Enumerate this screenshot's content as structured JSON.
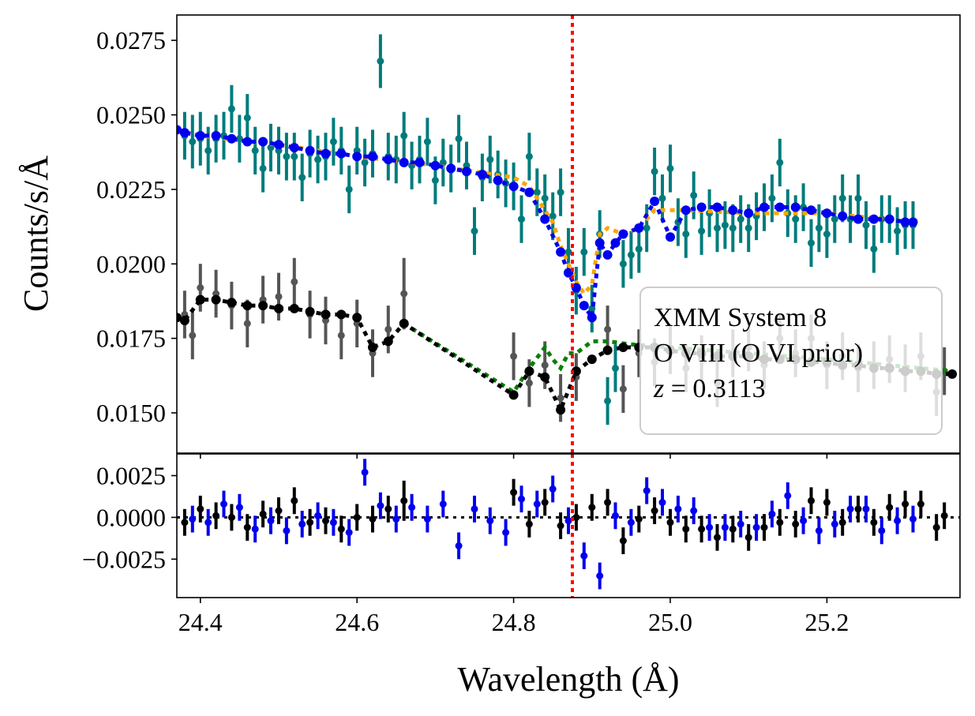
{
  "chart_data": {
    "type": "scatter",
    "xlabel": "Wavelength (Å)",
    "ylabel": "Counts/s/Å",
    "xlim": [
      24.37,
      25.37
    ],
    "top_ylim": [
      0.01365,
      0.02835
    ],
    "bottom_ylim": [
      -0.0048,
      0.0038
    ],
    "x_ticks": [
      24.4,
      24.6,
      24.8,
      25.0,
      25.2
    ],
    "x_tick_labels": [
      "24.4",
      "24.6",
      "24.8",
      "25.0",
      "25.2"
    ],
    "top_y_ticks": [
      0.015,
      0.0175,
      0.02,
      0.0225,
      0.025,
      0.0275
    ],
    "top_y_tick_labels": [
      "0.0150",
      "0.0175",
      "0.0200",
      "0.0225",
      "0.0250",
      "0.0275"
    ],
    "bottom_y_ticks": [
      -0.0025,
      0.0,
      0.0025
    ],
    "bottom_y_tick_labels": [
      "−0.0025",
      "0.0000",
      "0.0025"
    ],
    "line_wavelength": 24.875,
    "legend": {
      "lines": [
        "XMM System 8",
        "O VIII (O VI prior)"
      ],
      "z_symbol": "z",
      "z_value": " = 0.3113",
      "position": "right"
    },
    "colors": {
      "data_upper": "#007b7b",
      "model_upper": "#0000ee",
      "model_upper_alt": "#ffa500",
      "data_lower": "#555555",
      "model_lower": "#000000",
      "model_lower_alt": "#008000",
      "line_marker": "#ff0000"
    },
    "upper_data": {
      "x": [
        24.38,
        24.39,
        24.4,
        24.41,
        24.42,
        24.43,
        24.44,
        24.45,
        24.46,
        24.47,
        24.48,
        24.49,
        24.5,
        24.51,
        24.52,
        24.53,
        24.54,
        24.55,
        24.56,
        24.57,
        24.58,
        24.59,
        24.6,
        24.61,
        24.62,
        24.63,
        24.64,
        24.65,
        24.66,
        24.67,
        24.68,
        24.69,
        24.7,
        24.71,
        24.72,
        24.73,
        24.74,
        24.75,
        24.76,
        24.77,
        24.78,
        24.79,
        24.8,
        24.81,
        24.82,
        24.83,
        24.84,
        24.85,
        24.86,
        24.87,
        24.88,
        24.89,
        24.9,
        24.91,
        24.92,
        24.93,
        24.94,
        24.95,
        24.96,
        24.97,
        24.98,
        24.99,
        25.0,
        25.01,
        25.02,
        25.03,
        25.04,
        25.05,
        25.06,
        25.07,
        25.08,
        25.09,
        25.1,
        25.11,
        25.12,
        25.13,
        25.14,
        25.15,
        25.16,
        25.17,
        25.18,
        25.19,
        25.2,
        25.21,
        25.22,
        25.23,
        25.24,
        25.25,
        25.26,
        25.27,
        25.28,
        25.29,
        25.3,
        25.31
      ],
      "y": [
        0.0243,
        0.0241,
        0.0242,
        0.0238,
        0.0242,
        0.0243,
        0.0252,
        0.0242,
        0.0249,
        0.0238,
        0.0232,
        0.0239,
        0.0238,
        0.0236,
        0.0236,
        0.0229,
        0.0237,
        0.0235,
        0.0236,
        0.0241,
        0.0238,
        0.0225,
        0.0238,
        0.0234,
        0.0237,
        0.0268,
        0.0236,
        0.0235,
        0.0243,
        0.0233,
        0.0235,
        0.0241,
        0.0228,
        0.0234,
        0.0232,
        0.0242,
        0.0233,
        0.0211,
        0.0229,
        0.0235,
        0.023,
        0.0227,
        0.0226,
        0.0215,
        0.0236,
        0.0224,
        0.0222,
        0.0216,
        0.0224,
        0.0204,
        0.0191,
        0.0204,
        0.0185,
        0.021,
        0.0154,
        0.0165,
        0.02,
        0.0203,
        0.0205,
        0.0212,
        0.0231,
        0.0222,
        0.0232,
        0.0214,
        0.021,
        0.0223,
        0.0211,
        0.0217,
        0.0212,
        0.0213,
        0.0212,
        0.0215,
        0.0212,
        0.0216,
        0.0219,
        0.0222,
        0.0234,
        0.0217,
        0.0215,
        0.0219,
        0.0207,
        0.0212,
        0.021,
        0.0215,
        0.0222,
        0.0215,
        0.0222,
        0.0213,
        0.0205,
        0.0215,
        0.0215,
        0.0211,
        0.0213,
        0.0213
      ],
      "err": [
        0.0008,
        0.0009,
        0.0009,
        0.0008,
        0.0008,
        0.0008,
        0.0008,
        0.0008,
        0.0008,
        0.0008,
        0.0008,
        0.0008,
        0.0008,
        0.0008,
        0.0008,
        0.0008,
        0.0008,
        0.0008,
        0.0008,
        0.0008,
        0.0008,
        0.0008,
        0.0008,
        0.0008,
        0.0008,
        0.0009,
        0.0008,
        0.0008,
        0.0008,
        0.0008,
        0.0008,
        0.0008,
        0.0008,
        0.0008,
        0.0008,
        0.0008,
        0.0008,
        0.0008,
        0.0008,
        0.0008,
        0.0008,
        0.0008,
        0.0008,
        0.0008,
        0.0008,
        0.0008,
        0.0008,
        0.0008,
        0.0008,
        0.0008,
        0.0008,
        0.0008,
        0.0008,
        0.0008,
        0.0008,
        0.0008,
        0.0008,
        0.0008,
        0.0008,
        0.0008,
        0.0008,
        0.0008,
        0.0008,
        0.0008,
        0.0008,
        0.0008,
        0.0008,
        0.0008,
        0.0008,
        0.0008,
        0.0008,
        0.0008,
        0.0008,
        0.0008,
        0.0008,
        0.0008,
        0.0008,
        0.0008,
        0.0008,
        0.0008,
        0.0008,
        0.0008,
        0.0008,
        0.0008,
        0.0008,
        0.0008,
        0.0008,
        0.0008,
        0.0008,
        0.0008,
        0.0008,
        0.0008,
        0.0008,
        0.0008
      ]
    },
    "upper_model": {
      "x": [
        24.37,
        24.38,
        24.4,
        24.42,
        24.44,
        24.46,
        24.48,
        24.5,
        24.52,
        24.54,
        24.56,
        24.58,
        24.6,
        24.62,
        24.64,
        24.66,
        24.68,
        24.7,
        24.72,
        24.74,
        24.76,
        24.78,
        24.8,
        24.82,
        24.84,
        24.86,
        24.87,
        24.88,
        24.89,
        24.9,
        24.91,
        24.92,
        24.93,
        24.94,
        24.96,
        24.98,
        25.0,
        25.02,
        25.04,
        25.06,
        25.08,
        25.1,
        25.12,
        25.14,
        25.16,
        25.18,
        25.2,
        25.22,
        25.24,
        25.26,
        25.28,
        25.3,
        25.31
      ],
      "y": [
        0.0245,
        0.0244,
        0.0243,
        0.0243,
        0.0242,
        0.0241,
        0.0241,
        0.024,
        0.0239,
        0.0238,
        0.0237,
        0.0237,
        0.0236,
        0.0236,
        0.0235,
        0.0234,
        0.0234,
        0.0233,
        0.0232,
        0.0231,
        0.023,
        0.0228,
        0.0226,
        0.0224,
        0.0215,
        0.0204,
        0.0197,
        0.0192,
        0.0186,
        0.0182,
        0.0207,
        0.0203,
        0.0207,
        0.021,
        0.0212,
        0.0221,
        0.0209,
        0.0218,
        0.0219,
        0.0219,
        0.0218,
        0.0217,
        0.0219,
        0.0219,
        0.0219,
        0.0218,
        0.0217,
        0.0216,
        0.0215,
        0.0215,
        0.0215,
        0.0214,
        0.0214
      ]
    },
    "upper_model_alt": {
      "x": [
        24.37,
        24.4,
        24.5,
        24.6,
        24.7,
        24.8,
        24.82,
        24.84,
        24.85,
        24.86,
        24.87,
        24.88,
        24.89,
        24.9,
        24.91,
        24.92,
        24.93,
        24.94,
        24.96,
        24.98,
        25.0,
        25.02,
        25.1,
        25.2,
        25.31
      ],
      "y": [
        0.0245,
        0.0243,
        0.024,
        0.0236,
        0.0233,
        0.0229,
        0.0226,
        0.0218,
        0.0214,
        0.0206,
        0.02,
        0.0194,
        0.019,
        0.0193,
        0.021,
        0.0212,
        0.0211,
        0.021,
        0.0212,
        0.0218,
        0.0218,
        0.0218,
        0.0217,
        0.0217,
        0.0214
      ]
    },
    "lower_data": {
      "x": [
        24.38,
        24.39,
        24.4,
        24.42,
        24.44,
        24.46,
        24.48,
        24.5,
        24.52,
        24.54,
        24.56,
        24.58,
        24.6,
        24.62,
        24.64,
        24.66,
        24.8,
        24.82,
        24.84,
        24.86,
        24.88,
        24.92,
        24.94,
        24.96,
        24.98,
        25.0,
        25.02,
        25.04,
        25.06,
        25.08,
        25.1,
        25.12,
        25.14,
        25.16,
        25.18,
        25.2,
        25.22,
        25.24,
        25.26,
        25.28,
        25.3,
        25.32,
        25.34,
        25.35
      ],
      "y": [
        0.0183,
        0.0176,
        0.0192,
        0.019,
        0.0186,
        0.018,
        0.0188,
        0.0189,
        0.0194,
        0.0183,
        0.0181,
        0.0176,
        0.018,
        0.017,
        0.0178,
        0.019,
        0.0169,
        0.016,
        0.0166,
        0.0155,
        0.0162,
        0.0178,
        0.0158,
        0.017,
        0.0167,
        0.0171,
        0.0165,
        0.0168,
        0.016,
        0.017,
        0.0172,
        0.0166,
        0.0175,
        0.017,
        0.0175,
        0.0166,
        0.0169,
        0.0165,
        0.0166,
        0.0168,
        0.0165,
        0.0169,
        0.0157,
        0.0164
      ],
      "err": [
        0.0008,
        0.0008,
        0.0008,
        0.0008,
        0.0008,
        0.0008,
        0.0008,
        0.0008,
        0.0008,
        0.0008,
        0.0008,
        0.0008,
        0.0008,
        0.0008,
        0.0008,
        0.0012,
        0.0008,
        0.0008,
        0.0008,
        0.0008,
        0.0008,
        0.0008,
        0.0008,
        0.0008,
        0.0008,
        0.0008,
        0.0008,
        0.0008,
        0.0008,
        0.0008,
        0.0008,
        0.0008,
        0.0008,
        0.0008,
        0.0008,
        0.0008,
        0.0008,
        0.0008,
        0.0008,
        0.0008,
        0.0008,
        0.0008,
        0.0008,
        0.0008
      ]
    },
    "lower_model": {
      "x": [
        24.37,
        24.38,
        24.4,
        24.42,
        24.44,
        24.46,
        24.48,
        24.5,
        24.52,
        24.54,
        24.56,
        24.58,
        24.6,
        24.62,
        24.64,
        24.66,
        24.8,
        24.82,
        24.84,
        24.86,
        24.88,
        24.9,
        24.92,
        24.94,
        24.96,
        24.98,
        25.0,
        25.02,
        25.04,
        25.06,
        25.08,
        25.1,
        25.12,
        25.14,
        25.16,
        25.18,
        25.2,
        25.22,
        25.24,
        25.26,
        25.28,
        25.3,
        25.32,
        25.34,
        25.36
      ],
      "y": [
        0.0182,
        0.0181,
        0.0188,
        0.0188,
        0.0187,
        0.0186,
        0.0186,
        0.0185,
        0.0185,
        0.0184,
        0.0183,
        0.0183,
        0.0182,
        0.0172,
        0.0174,
        0.018,
        0.0156,
        0.0164,
        0.0162,
        0.0151,
        0.0164,
        0.0168,
        0.0171,
        0.0172,
        0.0172,
        0.0172,
        0.0171,
        0.017,
        0.017,
        0.0169,
        0.0169,
        0.0169,
        0.0168,
        0.0168,
        0.0168,
        0.0167,
        0.0167,
        0.0166,
        0.0166,
        0.0165,
        0.0165,
        0.0164,
        0.0164,
        0.0163,
        0.0163
      ]
    },
    "lower_model_alt": {
      "x": [
        24.66,
        24.8,
        24.82,
        24.84,
        24.85,
        24.86,
        24.87,
        24.88,
        24.9,
        24.92,
        24.95,
        25.0,
        25.1,
        25.2,
        25.36
      ],
      "y": [
        0.018,
        0.0157,
        0.0165,
        0.0172,
        0.0168,
        0.0165,
        0.017,
        0.017,
        0.0174,
        0.0174,
        0.0173,
        0.0172,
        0.017,
        0.0168,
        0.0164
      ]
    },
    "residual_black": {
      "x": [
        24.38,
        24.4,
        24.42,
        24.44,
        24.46,
        24.48,
        24.5,
        24.52,
        24.54,
        24.56,
        24.58,
        24.6,
        24.62,
        24.64,
        24.66,
        24.8,
        24.82,
        24.84,
        24.86,
        24.88,
        24.9,
        24.92,
        24.94,
        24.96,
        24.98,
        25.0,
        25.02,
        25.04,
        25.06,
        25.08,
        25.1,
        25.12,
        25.14,
        25.16,
        25.18,
        25.2,
        25.22,
        25.24,
        25.26,
        25.28,
        25.3,
        25.32,
        25.34,
        25.35
      ],
      "y": [
        -0.0003,
        0.0005,
        0.0001,
        0.0,
        -0.0006,
        0.0002,
        0.0004,
        0.001,
        -0.0003,
        -0.0002,
        -0.0007,
        0.0,
        -0.0001,
        0.0005,
        0.001,
        0.0015,
        -0.0004,
        0.0009,
        -0.0005,
        0.0,
        0.0006,
        0.0009,
        -0.0014,
        -0.0001,
        0.0004,
        -0.0003,
        -0.0007,
        -0.0007,
        -0.0012,
        -0.0007,
        -0.0012,
        -0.0006,
        -0.0003,
        -0.0004,
        0.001,
        0.0009,
        -0.0003,
        0.0005,
        -0.0003,
        0.0006,
        0.0008,
        0.0008,
        -0.0006,
        0.0001
      ],
      "err": [
        0.0008,
        0.0008,
        0.0008,
        0.0008,
        0.0008,
        0.0008,
        0.0008,
        0.0008,
        0.0008,
        0.0008,
        0.0008,
        0.0008,
        0.0008,
        0.0008,
        0.0012,
        0.0008,
        0.0008,
        0.0008,
        0.0008,
        0.0008,
        0.0008,
        0.0008,
        0.0008,
        0.0008,
        0.0008,
        0.0008,
        0.0008,
        0.0008,
        0.0008,
        0.0008,
        0.0008,
        0.0008,
        0.0008,
        0.0008,
        0.0008,
        0.0008,
        0.0008,
        0.0008,
        0.0008,
        0.0008,
        0.0008,
        0.0008,
        0.0008,
        0.0008
      ]
    },
    "residual_blue": {
      "x": [
        24.39,
        24.41,
        24.43,
        24.45,
        24.47,
        24.49,
        24.51,
        24.53,
        24.55,
        24.57,
        24.59,
        24.61,
        24.63,
        24.65,
        24.67,
        24.69,
        24.71,
        24.73,
        24.75,
        24.77,
        24.79,
        24.81,
        24.83,
        24.85,
        24.87,
        24.89,
        24.91,
        24.93,
        24.95,
        24.97,
        24.99,
        25.01,
        25.03,
        25.05,
        25.07,
        25.09,
        25.11,
        25.13,
        25.15,
        25.17,
        25.19,
        25.21,
        25.23,
        25.25,
        25.27,
        25.29,
        25.31
      ],
      "y": [
        -0.0001,
        -0.0003,
        0.0008,
        0.0006,
        -0.0007,
        -0.0002,
        -0.0008,
        -0.0004,
        0.0001,
        -0.0003,
        -0.0009,
        0.0027,
        0.0007,
        -0.0001,
        0.0006,
        -0.0001,
        0.0008,
        -0.0017,
        0.0005,
        -0.0002,
        -0.0009,
        0.0011,
        0.0008,
        0.0017,
        -0.0002,
        -0.0023,
        -0.0035,
        0.0001,
        -0.0003,
        0.0016,
        0.0009,
        0.0005,
        0.0004,
        -0.0006,
        -0.0006,
        -0.0004,
        -0.0006,
        0.0002,
        0.0013,
        -0.0002,
        -0.0008,
        -0.0004,
        0.0005,
        0.0005,
        -0.0008,
        -0.0002,
        -0.0001
      ],
      "err": [
        0.0008,
        0.0008,
        0.0008,
        0.0008,
        0.0008,
        0.0008,
        0.0008,
        0.0008,
        0.0008,
        0.0008,
        0.0008,
        0.0008,
        0.0008,
        0.0008,
        0.0008,
        0.0008,
        0.0008,
        0.0008,
        0.0008,
        0.0008,
        0.0008,
        0.0008,
        0.0008,
        0.0008,
        0.0008,
        0.0008,
        0.0008,
        0.0008,
        0.0008,
        0.0008,
        0.0008,
        0.0008,
        0.0008,
        0.0008,
        0.0008,
        0.0008,
        0.0008,
        0.0008,
        0.0008,
        0.0008,
        0.0008,
        0.0008,
        0.0008,
        0.0008,
        0.0008,
        0.0008,
        0.0008
      ]
    }
  }
}
